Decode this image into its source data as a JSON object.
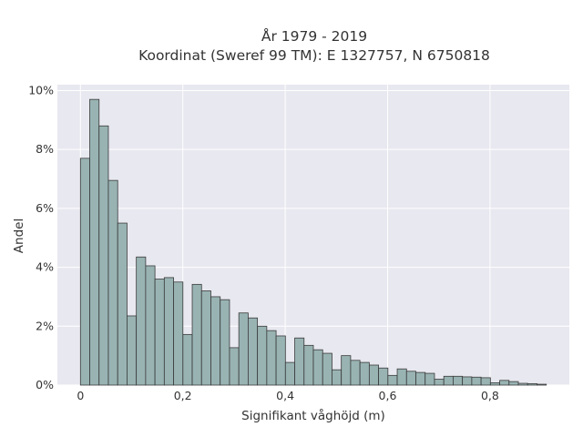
{
  "chart_data": {
    "type": "bar",
    "title": [
      "År 1979 - 2019",
      "Koordinat (Sweref 99 TM): E 1327757, N 6750818"
    ],
    "xlabel": "Signifikant våghöjd (m)",
    "ylabel": "Andel",
    "xlim": [
      -0.045,
      0.955
    ],
    "ylim": [
      0,
      10.2
    ],
    "xticks": [
      0,
      0.2,
      0.4,
      0.6,
      0.8
    ],
    "xtick_labels": [
      "0",
      "0,2",
      "0,4",
      "0,6",
      "0,8"
    ],
    "yticks": [
      0,
      2,
      4,
      6,
      8,
      10
    ],
    "ytick_labels": [
      "0%",
      "2%",
      "4%",
      "6%",
      "8%",
      "10%"
    ],
    "grid": true,
    "bin_start": 0,
    "bin_width": 0.0182,
    "values": [
      7.7,
      9.7,
      8.8,
      6.95,
      5.5,
      2.35,
      4.35,
      4.05,
      3.6,
      3.65,
      3.5,
      1.72,
      3.42,
      3.2,
      3.0,
      2.9,
      1.27,
      2.45,
      2.28,
      2.0,
      1.85,
      1.67,
      0.77,
      1.6,
      1.35,
      1.2,
      1.08,
      0.52,
      1.0,
      0.84,
      0.77,
      0.68,
      0.58,
      0.33,
      0.55,
      0.47,
      0.43,
      0.4,
      0.2,
      0.3,
      0.3,
      0.28,
      0.27,
      0.25,
      0.08,
      0.16,
      0.12,
      0.06,
      0.05,
      0.03
    ],
    "colors": {
      "bar_fill": "#99b3b3",
      "bar_stroke": "#3a3a3a",
      "plot_bg": "#e8e8f0",
      "grid": "#ffffff",
      "text": "#333333"
    }
  }
}
